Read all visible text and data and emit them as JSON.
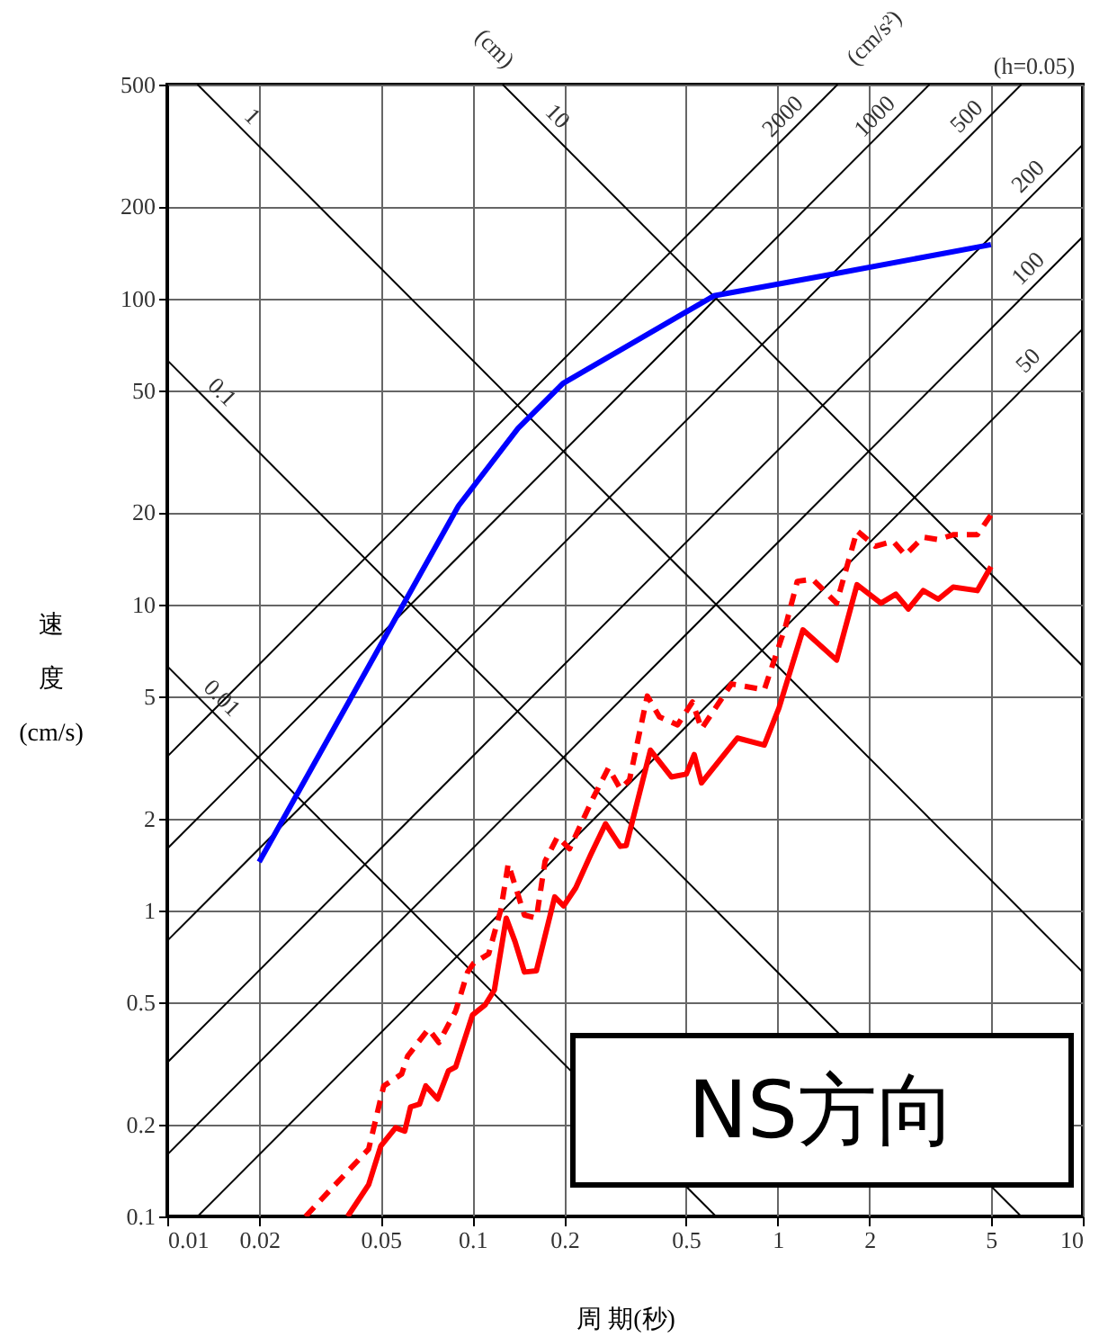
{
  "chart_data": {
    "type": "line",
    "xlabel": "周 期(秒)",
    "ylabel": "速度 (cm/s)",
    "annotations": [
      "(cm)",
      "(cm/s²)",
      "(h=0.05)",
      "NS方向"
    ],
    "log": "xy",
    "grid": true,
    "marker": "none",
    "xlim": [
      0.01,
      10
    ],
    "xticks": [
      0.01,
      0.02,
      0.05,
      0.1,
      0.2,
      0.5,
      1,
      2,
      5,
      10
    ],
    "ylim": [
      0.1,
      500
    ],
    "yticks": [
      0.1,
      0.2,
      0.5,
      1,
      2,
      5,
      10,
      20,
      50,
      100,
      200,
      500
    ],
    "series": [
      {
        "name": "0.01",
        "color": "#000000",
        "x": [
          0.01,
          0.6283
        ],
        "values": [
          6.283,
          0.1
        ]
      },
      {
        "name": "0.1",
        "color": "#000000",
        "x": [
          0.01,
          6.283
        ],
        "values": [
          62.83,
          0.1
        ]
      },
      {
        "name": "1",
        "color": "#000000",
        "x": [
          0.01257,
          10
        ],
        "values": [
          500,
          0.6283
        ]
      },
      {
        "name": "10",
        "color": "#000000",
        "x": [
          0.1257,
          10
        ],
        "values": [
          500,
          6.283
        ]
      },
      {
        "name": "50",
        "color": "#000000",
        "x": [
          0.01257,
          10
        ],
        "values": [
          0.1,
          79.58
        ]
      },
      {
        "name": "100",
        "color": "#000000",
        "x": [
          0.01,
          10
        ],
        "values": [
          0.1592,
          159.2
        ]
      },
      {
        "name": "200",
        "color": "#000000",
        "x": [
          0.01,
          10
        ],
        "values": [
          0.3183,
          318.3
        ]
      },
      {
        "name": "500",
        "color": "#000000",
        "x": [
          0.01,
          6.283
        ],
        "values": [
          0.7958,
          500
        ]
      },
      {
        "name": "1000",
        "color": "#000000",
        "x": [
          0.01,
          3.142
        ],
        "values": [
          1.592,
          500
        ]
      },
      {
        "name": "2000",
        "color": "#000000",
        "x": [
          0.01,
          1.571
        ],
        "values": [
          3.183,
          500
        ]
      },
      {
        "color": "#0000ff",
        "line_style": "solid",
        "x": [
          0.02,
          0.09,
          0.141,
          0.198,
          0.618,
          1.51,
          5
        ],
        "values": [
          1.44,
          21,
          37.6,
          52.8,
          102,
          120,
          150
        ]
      },
      {
        "color": "#ff0000",
        "line_style": "solid",
        "x": [
          0.039,
          0.0457,
          0.0501,
          0.056,
          0.06,
          0.0627,
          0.0671,
          0.0703,
          0.0769,
          0.0834,
          0.0881,
          0.1,
          0.11,
          0.118,
          0.129,
          0.138,
          0.148,
          0.162,
          0.186,
          0.199,
          0.218,
          0.244,
          0.273,
          0.305,
          0.319,
          0.383,
          0.449,
          0.502,
          0.533,
          0.563,
          0.738,
          0.904,
          1.01,
          1.21,
          1.56,
          1.82,
          2.18,
          2.44,
          2.68,
          3.0,
          3.36,
          3.76,
          4.51,
          5
        ],
        "values": [
          0.1,
          0.127,
          0.17,
          0.195,
          0.19,
          0.228,
          0.233,
          0.267,
          0.242,
          0.299,
          0.308,
          0.455,
          0.491,
          0.55,
          0.944,
          0.789,
          0.629,
          0.635,
          1.107,
          1.035,
          1.186,
          1.52,
          1.92,
          1.62,
          1.63,
          3.34,
          2.73,
          2.79,
          3.23,
          2.61,
          3.66,
          3.47,
          4.59,
          8.26,
          6.58,
          11.6,
          10.1,
          10.8,
          9.66,
          11.1,
          10.4,
          11.4,
          11.1,
          13.3
        ]
      },
      {
        "color": "#ff0000",
        "line_style": "dashed",
        "x": [
          0.0284,
          0.0318,
          0.0457,
          0.0512,
          0.0586,
          0.0613,
          0.0718,
          0.0776,
          0.0881,
          0.0964,
          0.101,
          0.113,
          0.124,
          0.131,
          0.148,
          0.162,
          0.173,
          0.19,
          0.208,
          0.249,
          0.279,
          0.305,
          0.327,
          0.374,
          0.41,
          0.47,
          0.526,
          0.563,
          0.706,
          0.904,
          1.06,
          1.16,
          1.3,
          1.56,
          1.82,
          2.09,
          2.39,
          2.62,
          3.0,
          3.36,
          3.76,
          4.51,
          5
        ],
        "values": [
          0.1,
          0.113,
          0.166,
          0.267,
          0.292,
          0.334,
          0.41,
          0.37,
          0.469,
          0.629,
          0.673,
          0.721,
          1.01,
          1.42,
          0.966,
          0.944,
          1.45,
          1.74,
          1.59,
          2.34,
          2.92,
          2.5,
          2.67,
          5.02,
          4.29,
          4.04,
          4.8,
          3.92,
          5.5,
          5.26,
          8.45,
          11.9,
          12.1,
          10.1,
          17.4,
          15.5,
          16.1,
          14.5,
          16.6,
          16.3,
          16.9,
          16.9,
          19.6
        ]
      }
    ]
  }
}
